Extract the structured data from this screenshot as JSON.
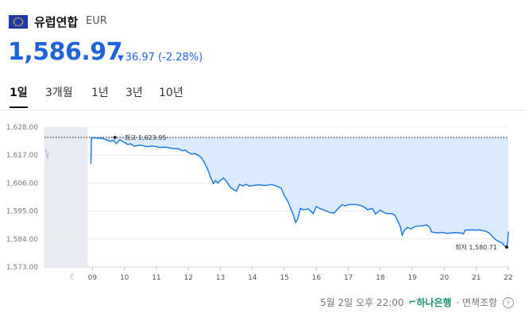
{
  "currency": {
    "name": "유럽연합",
    "code": "EUR",
    "price": "1,586.97",
    "change": "36.97 (-2.28%)",
    "down_color": "#1f63d8"
  },
  "tabs": [
    {
      "label": "1일",
      "active": true
    },
    {
      "label": "3개월",
      "active": false
    },
    {
      "label": "1년",
      "active": false
    },
    {
      "label": "3년",
      "active": false
    },
    {
      "label": "10년",
      "active": false
    }
  ],
  "chart_data": {
    "type": "area",
    "ylim": [
      1573,
      1628
    ],
    "yticks": [
      1628,
      1617,
      1606,
      1595,
      1584,
      1573
    ],
    "ytick_labels": [
      "1,628.00",
      "1,617.00",
      "1,606.00",
      "1,595.00",
      "1,584.00",
      "1,573.00"
    ],
    "xlim": [
      7.5,
      22
    ],
    "xticks": [
      9,
      10,
      11,
      12,
      13,
      14,
      15,
      16,
      17,
      18,
      19,
      20,
      21,
      22
    ],
    "xtick_labels": [
      "09",
      "10",
      "11",
      "12",
      "13",
      "14",
      "15",
      "16",
      "17",
      "18",
      "19",
      "20",
      21,
      "22"
    ],
    "night_span": [
      7.5,
      8.85
    ],
    "baseline": 1623.95,
    "high_label": "최고 1,623.95",
    "low_label": "최저 1,580.71",
    "series": [
      {
        "values": [
          [
            7.52,
            1618.3
          ],
          [
            7.55,
            1619.5
          ],
          [
            7.57,
            1617.0
          ],
          [
            7.6,
            1615.5
          ],
          [
            7.62,
            1618.0
          ],
          [
            8.95,
            1613.5
          ],
          [
            8.97,
            1623.8
          ],
          [
            9.1,
            1623.7
          ],
          [
            9.3,
            1623.6
          ],
          [
            9.45,
            1623.0
          ],
          [
            9.55,
            1622.4
          ],
          [
            9.65,
            1622.8
          ],
          [
            9.75,
            1621.5
          ],
          [
            9.85,
            1623.0
          ],
          [
            9.95,
            1622.3
          ],
          [
            10.0,
            1622.0
          ],
          [
            10.1,
            1621.2
          ],
          [
            10.2,
            1621.4
          ],
          [
            10.3,
            1620.5
          ],
          [
            10.5,
            1620.9
          ],
          [
            10.7,
            1620.3
          ],
          [
            10.9,
            1620.6
          ],
          [
            11.1,
            1620.0
          ],
          [
            11.3,
            1620.1
          ],
          [
            11.5,
            1619.6
          ],
          [
            11.7,
            1619.5
          ],
          [
            11.8,
            1618.7
          ],
          [
            11.9,
            1619.0
          ],
          [
            12.0,
            1618.0
          ],
          [
            12.1,
            1617.4
          ],
          [
            12.2,
            1617.6
          ],
          [
            12.3,
            1617.0
          ],
          [
            12.4,
            1616.0
          ],
          [
            12.5,
            1614.0
          ],
          [
            12.6,
            1611.5
          ],
          [
            12.7,
            1608.0
          ],
          [
            12.78,
            1605.8
          ],
          [
            12.85,
            1607.0
          ],
          [
            12.92,
            1606.0
          ],
          [
            13.0,
            1607.0
          ],
          [
            13.1,
            1608.0
          ],
          [
            13.2,
            1606.5
          ],
          [
            13.3,
            1604.5
          ],
          [
            13.4,
            1603.5
          ],
          [
            13.5,
            1602.8
          ],
          [
            13.6,
            1605.5
          ],
          [
            13.7,
            1604.8
          ],
          [
            13.8,
            1605.5
          ],
          [
            13.9,
            1604.8
          ],
          [
            14.0,
            1605.0
          ],
          [
            14.2,
            1605.3
          ],
          [
            14.4,
            1605.0
          ],
          [
            14.6,
            1605.4
          ],
          [
            14.75,
            1604.8
          ],
          [
            14.9,
            1604.0
          ],
          [
            15.0,
            1601.0
          ],
          [
            15.1,
            1599.0
          ],
          [
            15.2,
            1596.0
          ],
          [
            15.28,
            1593.5
          ],
          [
            15.35,
            1590.5
          ],
          [
            15.42,
            1592.0
          ],
          [
            15.5,
            1596.0
          ],
          [
            15.6,
            1595.5
          ],
          [
            15.75,
            1595.8
          ],
          [
            15.9,
            1594.0
          ],
          [
            16.0,
            1596.8
          ],
          [
            16.1,
            1596.0
          ],
          [
            16.25,
            1595.3
          ],
          [
            16.4,
            1594.5
          ],
          [
            16.55,
            1594.2
          ],
          [
            16.7,
            1596.2
          ],
          [
            16.8,
            1597.5
          ],
          [
            16.9,
            1597.0
          ],
          [
            17.0,
            1597.5
          ],
          [
            17.2,
            1597.6
          ],
          [
            17.4,
            1597.2
          ],
          [
            17.5,
            1596.5
          ],
          [
            17.6,
            1595.5
          ],
          [
            17.75,
            1596.0
          ],
          [
            17.85,
            1593.8
          ],
          [
            18.0,
            1595.4
          ],
          [
            18.1,
            1594.5
          ],
          [
            18.2,
            1594.0
          ],
          [
            18.35,
            1594.0
          ],
          [
            18.45,
            1593.4
          ],
          [
            18.55,
            1591.0
          ],
          [
            18.62,
            1589.0
          ],
          [
            18.68,
            1585.5
          ],
          [
            18.75,
            1587.5
          ],
          [
            18.85,
            1588.5
          ],
          [
            18.95,
            1588.0
          ],
          [
            19.1,
            1589.0
          ],
          [
            19.3,
            1589.2
          ],
          [
            19.45,
            1589.5
          ],
          [
            19.55,
            1588.5
          ],
          [
            19.6,
            1586.8
          ],
          [
            19.75,
            1586.4
          ],
          [
            19.95,
            1586.6
          ],
          [
            20.1,
            1586.2
          ],
          [
            20.3,
            1586.5
          ],
          [
            20.5,
            1586.4
          ],
          [
            20.6,
            1586.0
          ],
          [
            20.65,
            1587.5
          ],
          [
            20.8,
            1587.6
          ],
          [
            21.0,
            1587.5
          ],
          [
            21.1,
            1587.6
          ],
          [
            21.2,
            1587.3
          ],
          [
            21.3,
            1587.0
          ],
          [
            21.4,
            1586.4
          ],
          [
            21.5,
            1585.0
          ],
          [
            21.6,
            1583.8
          ],
          [
            21.7,
            1583.0
          ],
          [
            21.8,
            1582.5
          ],
          [
            21.9,
            1581.0
          ],
          [
            21.95,
            1580.8
          ],
          [
            21.98,
            1583.0
          ],
          [
            22.0,
            1586.9
          ]
        ]
      }
    ]
  },
  "footer": {
    "timestamp": "5월 2일 오후 22:00",
    "bank": "하나은행",
    "suffix": "· 면책조항",
    "info_icon": "i"
  }
}
